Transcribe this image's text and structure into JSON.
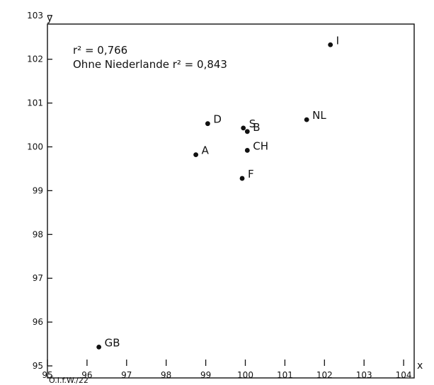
{
  "chart_data": {
    "type": "scatter",
    "title": "",
    "xlabel": "x",
    "ylabel": "y",
    "xlim": [
      95,
      104.3
    ],
    "ylim": [
      95,
      103.1
    ],
    "x_ticks": [
      95,
      96,
      97,
      98,
      99,
      100,
      101,
      102,
      103,
      104
    ],
    "x_tick_labels": [
      "95",
      "96",
      "97",
      "98",
      "99",
      "100",
      "101",
      "102",
      "103",
      "104"
    ],
    "y_ticks": [
      95,
      96,
      97,
      98,
      99,
      100,
      101,
      102,
      103
    ],
    "y_tick_labels": [
      "95",
      "96",
      "97",
      "98",
      "99",
      "100",
      "101",
      "102",
      "103"
    ],
    "grid": false,
    "points": [
      {
        "label": "GB",
        "x": 96.3,
        "y": 95.43
      },
      {
        "label": "A",
        "x": 98.75,
        "y": 99.82
      },
      {
        "label": "D",
        "x": 99.05,
        "y": 100.53
      },
      {
        "label": "S",
        "x": 99.95,
        "y": 100.43
      },
      {
        "label": "B",
        "x": 100.05,
        "y": 100.35
      },
      {
        "label": "CH",
        "x": 100.05,
        "y": 99.92
      },
      {
        "label": "F",
        "x": 99.92,
        "y": 99.28
      },
      {
        "label": "NL",
        "x": 101.55,
        "y": 100.62
      },
      {
        "label": "I",
        "x": 102.15,
        "y": 102.33
      }
    ],
    "annotations": [
      "r² = 0,766",
      "Ohne Niederlande r² = 0,843"
    ]
  },
  "credit": "Ö.I.f.W./22"
}
